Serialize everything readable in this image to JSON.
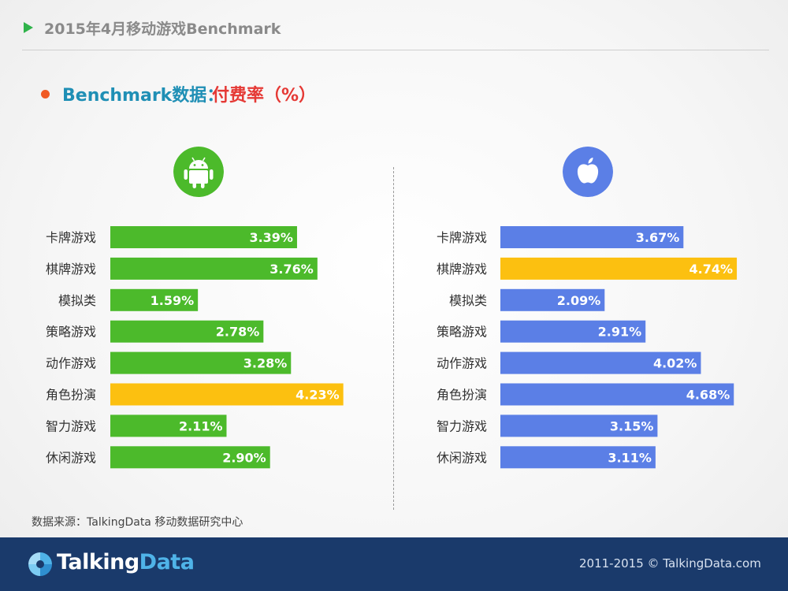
{
  "header": {
    "title": "2015年4月移动游戏Benchmark"
  },
  "subheading": {
    "part1": "Benchmark数据：",
    "part2": "付费率（%）"
  },
  "icons": {
    "android": "android-icon",
    "apple": "apple-icon"
  },
  "colors": {
    "android_bar": "#4cba2b",
    "ios_bar": "#5b7fe6",
    "highlight_bar": "#fcc010",
    "android_icon_bg": "#4cba2b",
    "apple_icon_bg": "#5b7fe6"
  },
  "chart_data": [
    {
      "type": "bar",
      "orientation": "horizontal",
      "platform": "Android",
      "categories": [
        "卡牌游戏",
        "棋牌游戏",
        "模拟类",
        "策略游戏",
        "动作游戏",
        "角色扮演",
        "智力游戏",
        "休闲游戏"
      ],
      "values": [
        3.39,
        3.76,
        1.59,
        2.78,
        3.28,
        4.23,
        2.11,
        2.9
      ],
      "value_labels": [
        "3.39%",
        "3.76%",
        "1.59%",
        "2.78%",
        "3.28%",
        "4.23%",
        "2.11%",
        "2.90%"
      ],
      "highlight_index": 5,
      "xlim": [
        0,
        4.5
      ]
    },
    {
      "type": "bar",
      "orientation": "horizontal",
      "platform": "iOS",
      "categories": [
        "卡牌游戏",
        "棋牌游戏",
        "模拟类",
        "策略游戏",
        "动作游戏",
        "角色扮演",
        "智力游戏",
        "休闲游戏"
      ],
      "values": [
        3.67,
        4.74,
        2.09,
        2.91,
        4.02,
        4.68,
        3.15,
        3.11
      ],
      "value_labels": [
        "3.67%",
        "4.74%",
        "2.09%",
        "2.91%",
        "4.02%",
        "4.68%",
        "3.15%",
        "3.11%"
      ],
      "highlight_index": 1,
      "xlim": [
        0,
        5.0
      ]
    }
  ],
  "source": "数据来源：TalkingData 移动数据研究中心",
  "footer": {
    "logo_part1": "Talking",
    "logo_part2": "Data",
    "copyright": "2011-2015 © TalkingData.com"
  }
}
